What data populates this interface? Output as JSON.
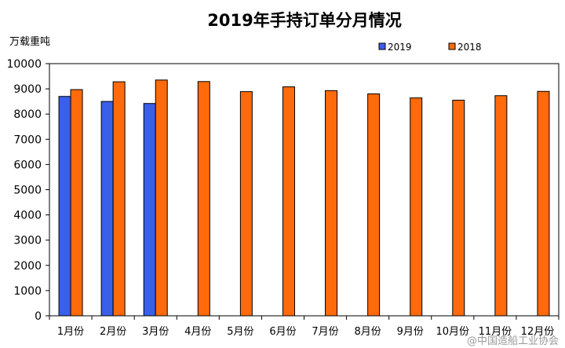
{
  "chart_data": {
    "type": "bar",
    "title": "2019年手持订单分月情况",
    "ylabel": "万载重吨",
    "xlabel": "",
    "categories": [
      "1月份",
      "2月份",
      "3月份",
      "4月份",
      "5月份",
      "6月份",
      "7月份",
      "8月份",
      "9月份",
      "10月份",
      "11月份",
      "12月份"
    ],
    "series": [
      {
        "name": "2019",
        "color": "#3a5fe8",
        "values": [
          8700,
          8500,
          8420,
          null,
          null,
          null,
          null,
          null,
          null,
          null,
          null,
          null
        ]
      },
      {
        "name": "2018",
        "color": "#ff6a0a",
        "values": [
          8970,
          9280,
          9350,
          9290,
          8890,
          9080,
          8930,
          8800,
          8640,
          8550,
          8730,
          8900
        ]
      }
    ],
    "ylim": [
      0,
      10000
    ],
    "yticks": [
      0,
      1000,
      2000,
      3000,
      4000,
      5000,
      6000,
      7000,
      8000,
      9000,
      10000
    ],
    "grid": false,
    "legend_position": "top-right"
  },
  "watermark": "@中国造船工业协会"
}
